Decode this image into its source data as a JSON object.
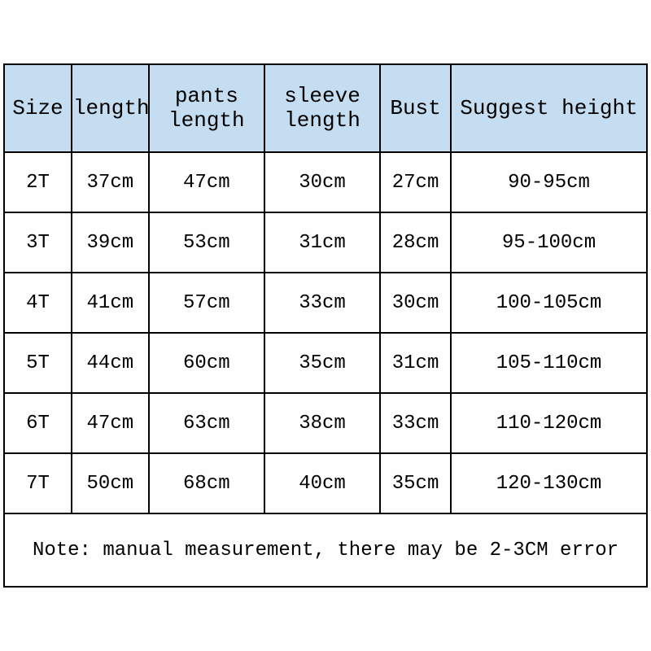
{
  "table": {
    "header_bg": "#c5ddf1",
    "border_color": "#000000",
    "text_color": "#000000",
    "font_family": "Courier New, monospace",
    "header_fontsize": 26,
    "cell_fontsize": 24,
    "columns": [
      {
        "label": "Size",
        "width_pct": 10.5
      },
      {
        "label": "length",
        "width_pct": 12
      },
      {
        "label": "pants length",
        "width_pct": 18
      },
      {
        "label": "sleeve length",
        "width_pct": 18
      },
      {
        "label": "Bust",
        "width_pct": 11
      },
      {
        "label": "Suggest height",
        "width_pct": 30.5
      }
    ],
    "rows": [
      [
        "2T",
        "37cm",
        "47cm",
        "30cm",
        "27cm",
        "90-95cm"
      ],
      [
        "3T",
        "39cm",
        "53cm",
        "31cm",
        "28cm",
        "95-100cm"
      ],
      [
        "4T",
        "41cm",
        "57cm",
        "33cm",
        "30cm",
        "100-105cm"
      ],
      [
        "5T",
        "44cm",
        "60cm",
        "35cm",
        "31cm",
        "105-110cm"
      ],
      [
        "6T",
        "47cm",
        "63cm",
        "38cm",
        "33cm",
        "110-120cm"
      ],
      [
        "7T",
        "50cm",
        "68cm",
        "40cm",
        "35cm",
        "120-130cm"
      ]
    ],
    "note": "Note: manual measurement, there may be 2-3CM error"
  }
}
